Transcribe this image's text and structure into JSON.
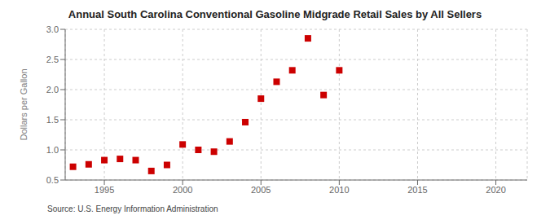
{
  "chart_data": {
    "type": "scatter",
    "title": "Annual South Carolina Conventional Gasoline Midgrade Retail Sales by All Sellers",
    "ylabel": "Dollars per Gallon",
    "annotations": [
      "Source: U.S. Energy Information Administration"
    ],
    "x": [
      1993,
      1994,
      1995,
      1996,
      1997,
      1998,
      1999,
      2000,
      2001,
      2002,
      2003,
      2004,
      2005,
      2006,
      2007,
      2008,
      2009,
      2010
    ],
    "values": [
      0.72,
      0.76,
      0.83,
      0.85,
      0.83,
      0.65,
      0.75,
      1.09,
      1.0,
      0.97,
      1.14,
      1.46,
      1.85,
      2.13,
      2.32,
      2.85,
      1.91,
      2.32
    ],
    "color": "#cc0000",
    "marker": "square",
    "xlim": [
      1992.5,
      2022
    ],
    "xticks": [
      1995,
      2000,
      2005,
      2010,
      2015,
      2020
    ],
    "ylim": [
      0.5,
      3.0
    ],
    "yticks": [
      0.5,
      {
        "value": 1,
        "label": "1.0"
      },
      1.5,
      {
        "value": 2,
        "label": "2.0"
      },
      2.5,
      {
        "value": 3,
        "label": "3.0"
      }
    ],
    "grid": true
  }
}
